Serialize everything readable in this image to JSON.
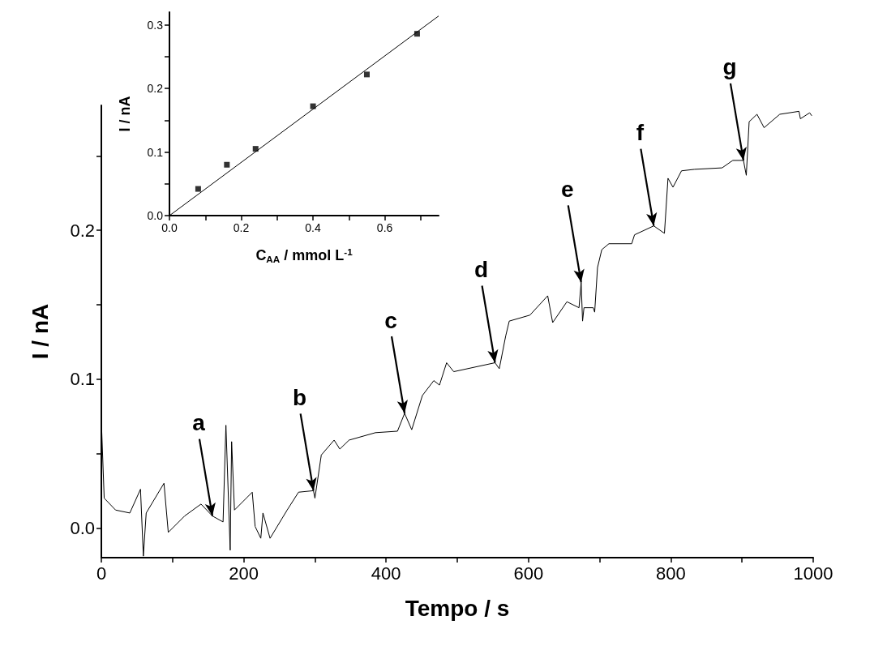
{
  "chart_data": [
    {
      "type": "line",
      "xlabel": "Tempo / s",
      "ylabel": "I / nA",
      "marker": "none",
      "xlim": [
        0,
        1000
      ],
      "xticks": [
        0,
        {
          "value": 100,
          "label": null
        },
        200,
        {
          "value": 300,
          "label": null
        },
        400,
        {
          "value": 500,
          "label": null
        },
        600,
        {
          "value": 700,
          "label": null
        },
        800,
        {
          "value": 900,
          "label": null
        },
        1000
      ],
      "ylim": [
        -0.02,
        0.284
      ],
      "yticks": [
        {
          "value": 0,
          "label": "0.0"
        },
        {
          "value": 0.05,
          "label": null
        },
        0.1,
        {
          "value": 0.15,
          "label": null
        },
        0.2,
        {
          "value": 0.25,
          "label": null
        }
      ],
      "series": [
        {
          "color": "#000000",
          "x": [
            0,
            4,
            20,
            40,
            55,
            59,
            63,
            88,
            94,
            117,
            140,
            156,
            171,
            175,
            181,
            183,
            187,
            212,
            216,
            224,
            227,
            237,
            261,
            277,
            298,
            300,
            309,
            327,
            335,
            348,
            385,
            416,
            426,
            436,
            451,
            467,
            475,
            485,
            495,
            553,
            559,
            568,
            573,
            602,
            627,
            634,
            654,
            671,
            674,
            676,
            678,
            691,
            693,
            697,
            703,
            713,
            745,
            749,
            776,
            791,
            796,
            803,
            815,
            833,
            872,
            887,
            902,
            906,
            910,
            921,
            931,
            953,
            980,
            982,
            995,
            998
          ],
          "values": [
            0.072,
            0.02,
            0.012,
            0.01,
            0.026,
            -0.019,
            0.01,
            0.03,
            -0.003,
            0.008,
            0.016,
            0.008,
            0.004,
            0.069,
            -0.015,
            0.058,
            0.012,
            0.024,
            0.001,
            -0.007,
            0.01,
            -0.007,
            0.012,
            0.024,
            0.025,
            0.02,
            0.049,
            0.059,
            0.053,
            0.059,
            0.064,
            0.065,
            0.077,
            0.066,
            0.089,
            0.099,
            0.096,
            0.111,
            0.105,
            0.111,
            0.107,
            0.129,
            0.139,
            0.143,
            0.156,
            0.138,
            0.152,
            0.148,
            0.165,
            0.139,
            0.148,
            0.148,
            0.145,
            0.175,
            0.187,
            0.191,
            0.191,
            0.197,
            0.203,
            0.198,
            0.235,
            0.229,
            0.24,
            0.241,
            0.242,
            0.247,
            0.247,
            0.237,
            0.273,
            0.278,
            0.269,
            0.278,
            0.28,
            0.275,
            0.279,
            0.277
          ]
        }
      ],
      "annotations": [
        {
          "text": "a",
          "x": 156,
          "y": 0.008
        },
        {
          "text": "b",
          "x": 298,
          "y": 0.025
        },
        {
          "text": "c",
          "x": 426,
          "y": 0.077
        },
        {
          "text": "d",
          "x": 553,
          "y": 0.111
        },
        {
          "text": "e",
          "x": 674,
          "y": 0.165
        },
        {
          "text": "f",
          "x": 776,
          "y": 0.203
        },
        {
          "text": "g",
          "x": 902,
          "y": 0.247
        }
      ]
    },
    {
      "type": "scatter",
      "xlabel": "C$_{AA}$ / mmol L$^{-1}$",
      "ylabel": "I / nA",
      "marker": "square",
      "xlim": [
        0,
        0.75
      ],
      "xticks": [
        {
          "value": 0,
          "label": "0.0"
        },
        {
          "value": 0.1,
          "label": null
        },
        0.2,
        {
          "value": 0.3,
          "label": null
        },
        0.4,
        {
          "value": 0.5,
          "label": null
        },
        0.6,
        {
          "value": 0.7,
          "label": null
        }
      ],
      "ylim": [
        0,
        0.32
      ],
      "yticks": [
        {
          "value": 0,
          "label": "0.0"
        },
        {
          "value": 0.05,
          "label": null
        },
        0.1,
        {
          "value": 0.15,
          "label": null
        },
        0.2,
        {
          "value": 0.25,
          "label": null
        },
        0.3
      ],
      "series": [
        {
          "color": "#000000",
          "x": [
            0.08,
            0.16,
            0.24,
            0.4,
            0.55,
            0.69
          ],
          "values": [
            0.042,
            0.08,
            0.105,
            0.172,
            0.222,
            0.286
          ]
        },
        {
          "type": "line",
          "marker": "none",
          "color": "#000000",
          "x": [
            0,
            0.75
          ],
          "values": [
            0,
            0.314
          ]
        }
      ]
    }
  ]
}
